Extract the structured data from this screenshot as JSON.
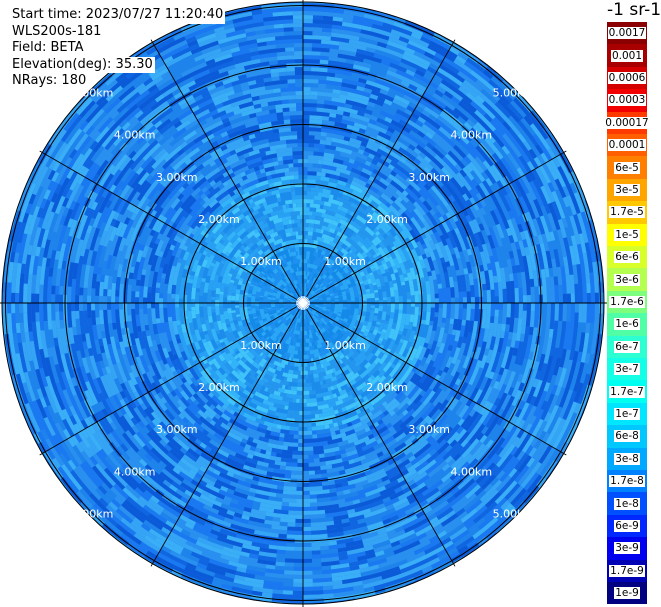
{
  "info": {
    "start_time": "Start time: 2023/07/27 11:20:40",
    "instrument": "WLS200s-181",
    "field": "Field: BETA",
    "elevation": "Elevation(deg): 35.30",
    "nrays": "NRays: 180"
  },
  "colorbar": {
    "unit": "-1 sr-1",
    "entries": [
      {
        "label": "0.0017",
        "color": "#8b0000"
      },
      {
        "label": "0.001",
        "color": "#a80000"
      },
      {
        "label": "0.0006",
        "color": "#d40000"
      },
      {
        "label": "0.0003",
        "color": "#f20000"
      },
      {
        "label": "0.00017",
        "color": "#ff3a00"
      },
      {
        "label": "0.0001",
        "color": "#ff5f00"
      },
      {
        "label": "6e-5",
        "color": "#ff8000"
      },
      {
        "label": "3e-5",
        "color": "#ffa500"
      },
      {
        "label": "1.7e-5",
        "color": "#ffc800"
      },
      {
        "label": "1e-5",
        "color": "#ffff00"
      },
      {
        "label": "6e-6",
        "color": "#d8ff2a"
      },
      {
        "label": "3e-6",
        "color": "#b4ff50"
      },
      {
        "label": "1.7e-6",
        "color": "#7dff7d"
      },
      {
        "label": "1e-6",
        "color": "#50ffa5"
      },
      {
        "label": "6e-7",
        "color": "#2effd2"
      },
      {
        "label": "3e-7",
        "color": "#14ffe6"
      },
      {
        "label": "1.7e-7",
        "color": "#00fff0"
      },
      {
        "label": "1e-7",
        "color": "#00e6ff"
      },
      {
        "label": "6e-8",
        "color": "#00c8ff"
      },
      {
        "label": "3e-8",
        "color": "#00a8ff"
      },
      {
        "label": "1.7e-8",
        "color": "#0082ff"
      },
      {
        "label": "1e-8",
        "color": "#0050ff"
      },
      {
        "label": "6e-9",
        "color": "#0028ff"
      },
      {
        "label": "3e-9",
        "color": "#0000ee"
      },
      {
        "label": "1.7e-9",
        "color": "#0000b4"
      },
      {
        "label": "1e-9",
        "color": "#000080"
      }
    ]
  },
  "range_rings": [
    "1.00km",
    "2.00km",
    "3.00km",
    "4.00km",
    "5.00km"
  ],
  "palette": {
    "outer": [
      "#1a78f0",
      "#2a90f0",
      "#0f66e0",
      "#36a4f4",
      "#1e84ec",
      "#0b5ad8",
      "#3aaef6"
    ],
    "mid": [
      "#28a0f4",
      "#34b4f8",
      "#1c8cec",
      "#40c4fa",
      "#2496ee"
    ],
    "inner": [
      "#1e90f0",
      "#2aa8f6",
      "#148ae8"
    ],
    "grid": "#000000",
    "ring_label": "#ffffff"
  }
}
